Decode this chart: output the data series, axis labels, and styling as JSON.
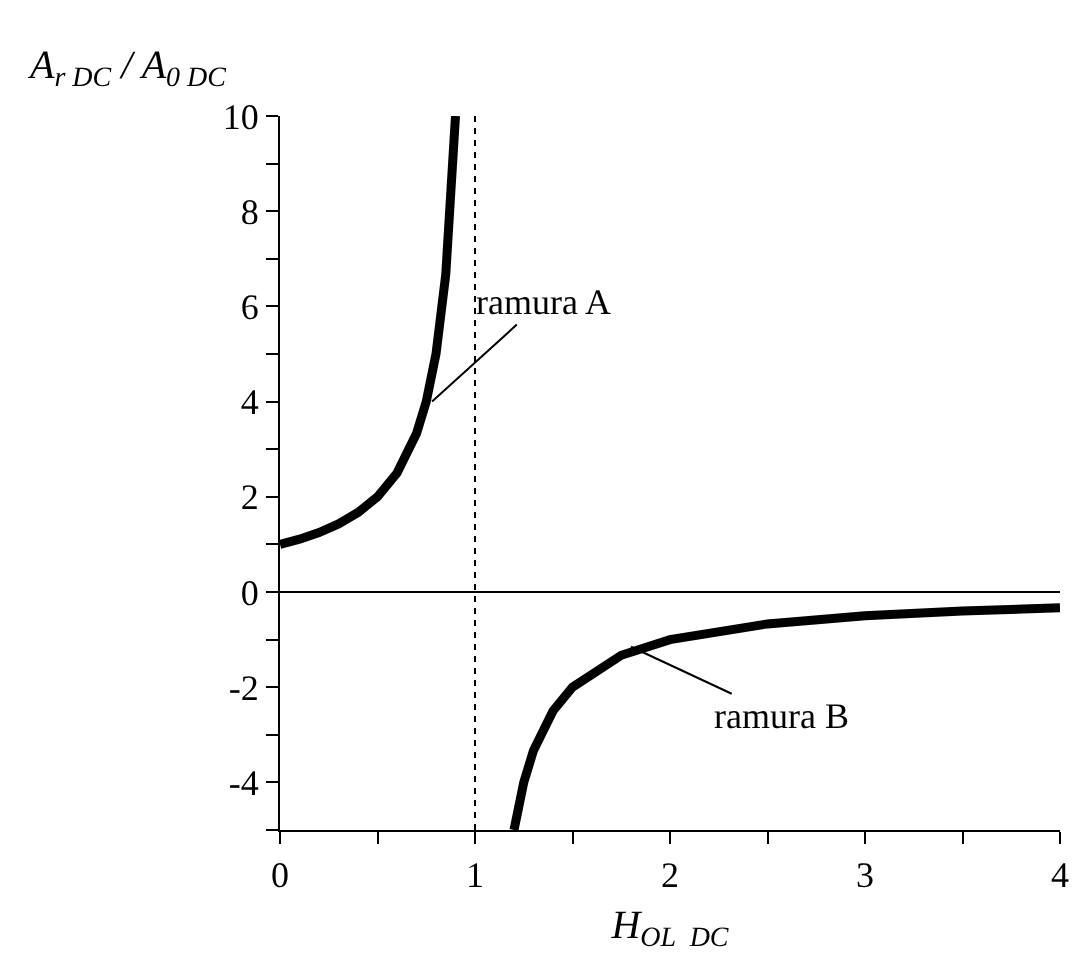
{
  "chart_data": {
    "type": "line",
    "ylabel": "A$_{r DC}$ / A$_{0 DC}$",
    "xlabel": "H$_{OL  DC}$",
    "series": [
      {
        "color": "#000000",
        "x": [
          0,
          0.1,
          0.2,
          0.3,
          0.4,
          0.5,
          0.6,
          0.7,
          0.75,
          0.8,
          0.85,
          0.9
        ],
        "values": [
          1,
          1.11,
          1.25,
          1.43,
          1.67,
          2,
          2.5,
          3.33,
          4,
          5,
          6.67,
          10
        ]
      },
      {
        "color": "#000000",
        "x": [
          1.2,
          1.25,
          1.3,
          1.4,
          1.5,
          1.75,
          2,
          2.5,
          3,
          3.5,
          4
        ],
        "values": [
          -5,
          -4,
          -3.33,
          -2.5,
          -2,
          -1.33,
          -1,
          -0.67,
          -0.5,
          -0.4,
          -0.33
        ]
      }
    ],
    "xlim": [
      0,
      4
    ],
    "xticks": [
      0,
      {
        "value": 0.5,
        "label": null
      },
      1,
      {
        "value": 1.5,
        "label": null
      },
      2,
      {
        "value": 2.5,
        "label": null
      },
      3,
      {
        "value": 3.5,
        "label": null
      },
      4
    ],
    "ylim": [
      -5,
      10
    ],
    "yticks": [
      {
        "value": -5,
        "label": null
      },
      -4,
      {
        "value": -3,
        "label": null
      },
      -2,
      {
        "value": -1,
        "label": null
      },
      0,
      {
        "value": 1,
        "label": null
      },
      2,
      {
        "value": 3,
        "label": null
      },
      4,
      {
        "value": 5,
        "label": null
      },
      6,
      {
        "value": 7,
        "label": null
      },
      8,
      {
        "value": 9,
        "label": null
      },
      10
    ],
    "ref_lines": [
      {
        "axis": "x",
        "value": 1,
        "line_style": "dotted",
        "color": "#000000"
      },
      {
        "axis": "y",
        "value": 0,
        "line_style": "solid",
        "color": "#000000"
      }
    ],
    "annotations": [
      {
        "text": "ramura A",
        "x": 0.78,
        "y": 4
      },
      {
        "text": "ramura B",
        "x": 1.8,
        "y": -1.15
      }
    ],
    "grid": false,
    "line_style": "solid",
    "marker": "none"
  }
}
